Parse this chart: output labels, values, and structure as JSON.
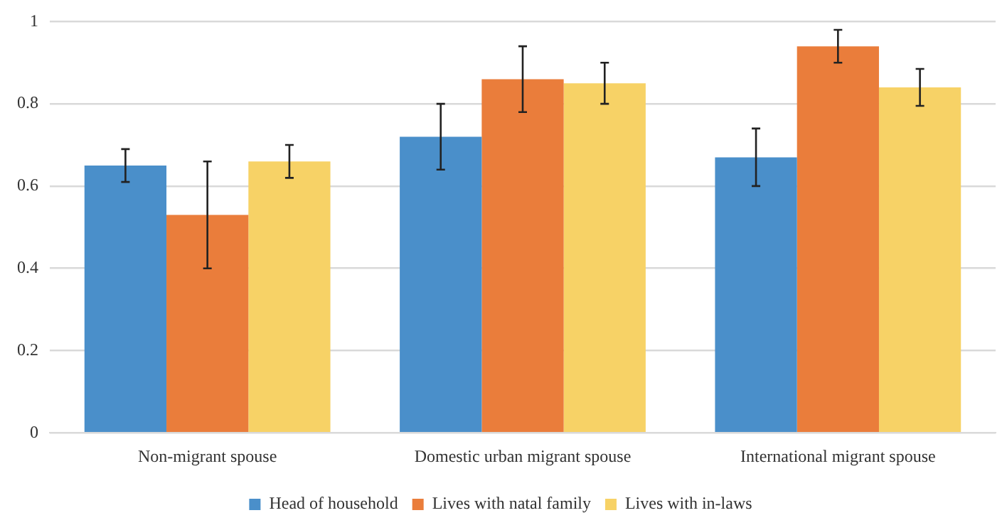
{
  "chart_data": {
    "type": "bar",
    "categories": [
      "Non-migrant spouse",
      "Domestic urban migrant spouse",
      "International migrant spouse"
    ],
    "series": [
      {
        "name": "Head of household",
        "color": "#4a8fca",
        "values": [
          0.65,
          0.72,
          0.67
        ],
        "errors": [
          0.04,
          0.08,
          0.07
        ]
      },
      {
        "name": "Lives with natal family",
        "color": "#ea7d3b",
        "values": [
          0.53,
          0.86,
          0.94
        ],
        "errors": [
          0.13,
          0.08,
          0.04
        ]
      },
      {
        "name": "Lives with in-laws",
        "color": "#f7d266",
        "values": [
          0.66,
          0.85,
          0.84
        ],
        "errors": [
          0.04,
          0.05,
          0.045
        ]
      }
    ],
    "ylim": [
      0,
      1
    ],
    "yticks": [
      0,
      0.2,
      0.4,
      0.6,
      0.8,
      1
    ],
    "grid": "y",
    "legend": "bottom"
  }
}
